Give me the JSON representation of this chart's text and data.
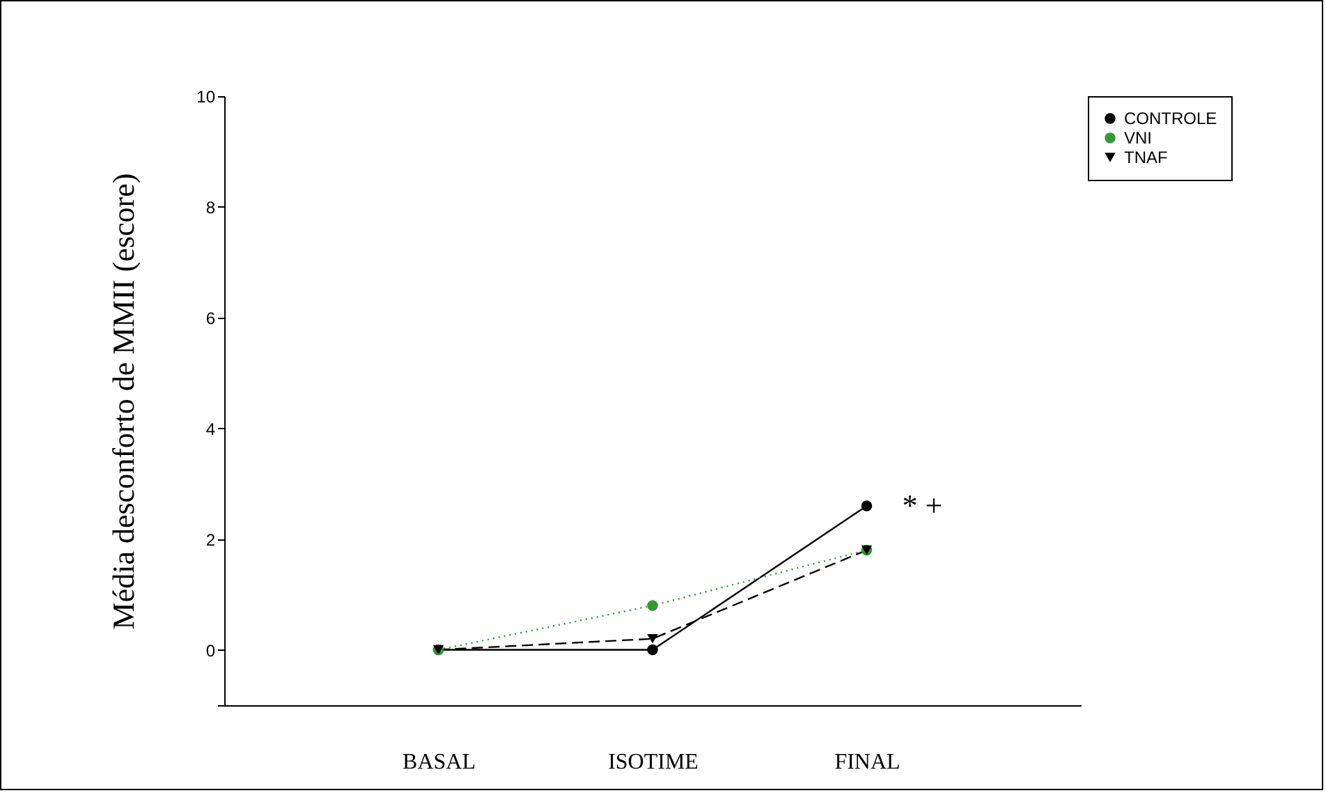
{
  "chart_data": {
    "type": "line",
    "ylabel": "Média desconforto de MMII (escore)",
    "categories": [
      "BASAL",
      "ISOTIME",
      "FINAL"
    ],
    "series": [
      {
        "name": "CONTROLE",
        "color": "#000000",
        "values": [
          0,
          0,
          2.6
        ],
        "marker": "circle",
        "line_style": "solid"
      },
      {
        "name": "VNI",
        "color": "#339933",
        "values": [
          0,
          0.8,
          1.8
        ],
        "marker": "circle",
        "line_style": "dotted"
      },
      {
        "name": "TNAF",
        "color": "#000000",
        "values": [
          0,
          0.2,
          1.8
        ],
        "marker": "triangle",
        "line_style": "dashed"
      }
    ],
    "ylim": [
      -1,
      10
    ],
    "yticks": [
      {
        "value": -1,
        "label": null
      },
      0,
      2,
      4,
      6,
      8,
      10
    ],
    "grid": false,
    "legend": "top right",
    "annotations": [
      {
        "text": "* +",
        "x": "FINAL",
        "y": 2.6
      }
    ]
  }
}
